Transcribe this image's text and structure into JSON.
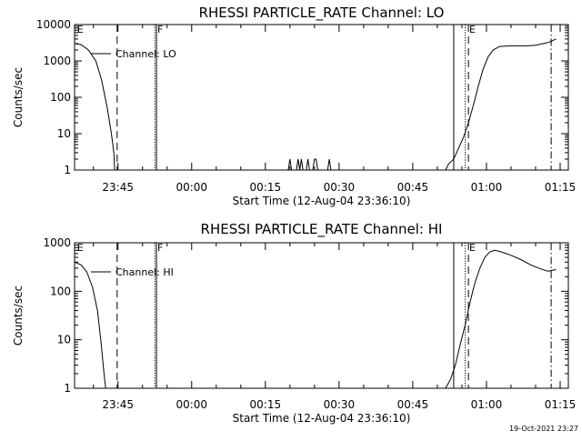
{
  "footer": "19-Oct-2021 23:27",
  "chart_data": [
    {
      "type": "line",
      "title": "RHESSI PARTICLE_RATE Channel: LO",
      "xlabel": "Start Time (12-Aug-04 23:36:10)",
      "ylabel": "Counts/sec",
      "y_scale": "log",
      "ylim": [
        1,
        10000
      ],
      "xlim": [
        "23:36:10",
        "01:16:40"
      ],
      "y_ticks": [
        "1",
        "10",
        "100",
        "1000",
        "10000"
      ],
      "x_ticks": [
        "23:45",
        "00:00",
        "00:15",
        "00:30",
        "00:45",
        "01:00",
        "01:15"
      ],
      "legend": "Channel: LO",
      "markers": [
        "E",
        "F",
        "E"
      ],
      "series": [
        {
          "segments": [
            [
              [
                "23:36:10",
                3000
              ],
              [
                "23:37:30",
                2800
              ],
              [
                "23:39:00",
                2000
              ],
              [
                "23:40:30",
                1000
              ],
              [
                "23:41:40",
                300
              ],
              [
                "23:42:50",
                50
              ],
              [
                "23:43:40",
                10
              ],
              [
                "23:44:10",
                3
              ],
              [
                "23:44:20",
                1
              ]
            ],
            [
              [
                "00:19:40",
                1
              ],
              [
                "00:20:00",
                2
              ],
              [
                "00:20:20",
                1
              ],
              [
                "00:21:20",
                1
              ],
              [
                "00:21:40",
                2
              ],
              [
                "00:22:00",
                1
              ],
              [
                "00:22:20",
                2
              ],
              [
                "00:22:40",
                1
              ],
              [
                "00:23:20",
                1
              ],
              [
                "00:23:40",
                2
              ],
              [
                "00:24:00",
                1
              ],
              [
                "00:24:40",
                1
              ],
              [
                "00:25:00",
                2
              ],
              [
                "00:25:20",
                2
              ],
              [
                "00:25:40",
                1
              ],
              [
                "00:27:40",
                1
              ],
              [
                "00:28:00",
                2
              ],
              [
                "00:28:20",
                1
              ]
            ],
            [
              [
                "00:51:40",
                1
              ],
              [
                "00:52:20",
                1.5
              ],
              [
                "00:53:20",
                2
              ],
              [
                "00:54:20",
                4
              ],
              [
                "00:55:20",
                8
              ],
              [
                "00:56:20",
                20
              ],
              [
                "00:57:20",
                60
              ],
              [
                "00:58:20",
                200
              ],
              [
                "00:59:20",
                600
              ],
              [
                "01:00:20",
                1300
              ],
              [
                "01:01:20",
                2000
              ],
              [
                "01:02:40",
                2500
              ],
              [
                "01:05:00",
                2600
              ],
              [
                "01:08:20",
                2600
              ],
              [
                "01:10:00",
                2700
              ],
              [
                "01:12:30",
                3200
              ],
              [
                "01:14:10",
                4000
              ]
            ]
          ]
        }
      ]
    },
    {
      "type": "line",
      "title": "RHESSI PARTICLE_RATE Channel: HI",
      "xlabel": "Start Time (12-Aug-04 23:36:10)",
      "ylabel": "Counts/sec",
      "y_scale": "log",
      "ylim": [
        1,
        1000
      ],
      "xlim": [
        "23:36:10",
        "01:16:40"
      ],
      "y_ticks": [
        "1",
        "10",
        "100",
        "1000"
      ],
      "x_ticks": [
        "23:45",
        "00:00",
        "00:15",
        "00:30",
        "00:45",
        "01:00",
        "01:15"
      ],
      "legend": "Channel: HI",
      "markers": [
        "E",
        "F",
        "E"
      ],
      "series": [
        {
          "segments": [
            [
              [
                "23:36:10",
                400
              ],
              [
                "23:37:30",
                350
              ],
              [
                "23:38:40",
                250
              ],
              [
                "23:39:50",
                120
              ],
              [
                "23:40:50",
                40
              ],
              [
                "23:41:30",
                10
              ],
              [
                "23:42:10",
                2
              ],
              [
                "23:42:30",
                1
              ]
            ],
            [
              [
                "00:51:40",
                1
              ],
              [
                "00:52:40",
                1.5
              ],
              [
                "00:53:40",
                3
              ],
              [
                "00:54:40",
                8
              ],
              [
                "00:55:40",
                20
              ],
              [
                "00:56:40",
                60
              ],
              [
                "00:57:40",
                150
              ],
              [
                "00:58:40",
                300
              ],
              [
                "00:59:40",
                500
              ],
              [
                "01:00:40",
                650
              ],
              [
                "01:01:40",
                700
              ],
              [
                "01:03:00",
                650
              ],
              [
                "01:05:00",
                550
              ],
              [
                "01:07:00",
                450
              ],
              [
                "01:09:00",
                350
              ],
              [
                "01:11:00",
                290
              ],
              [
                "01:12:30",
                260
              ],
              [
                "01:14:10",
                280
              ]
            ]
          ]
        }
      ]
    }
  ]
}
